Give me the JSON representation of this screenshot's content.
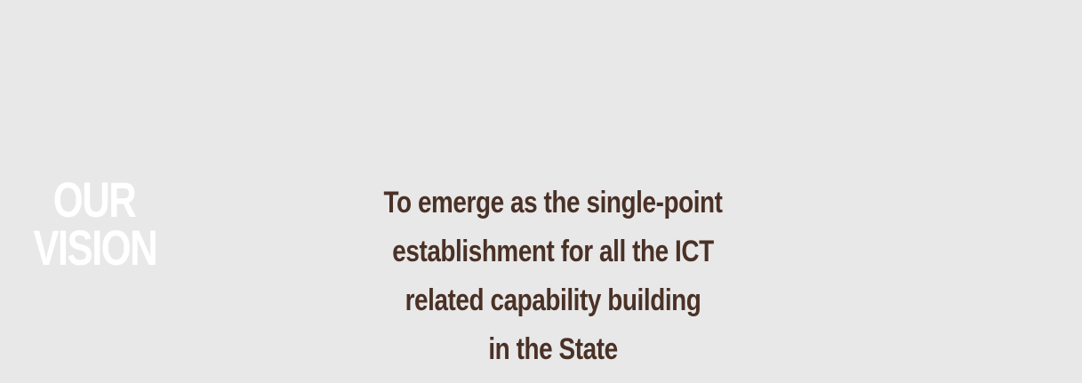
{
  "vision_section": {
    "heading": [
      "OUR",
      "VISION"
    ],
    "statement_lines": [
      "To emerge as the single-point",
      "establishment for all the ICT",
      "related capability building",
      "in the State"
    ]
  },
  "colors": {
    "background": "#e8e8e8",
    "heading": "#ffffff",
    "statement": "#4a3126"
  }
}
